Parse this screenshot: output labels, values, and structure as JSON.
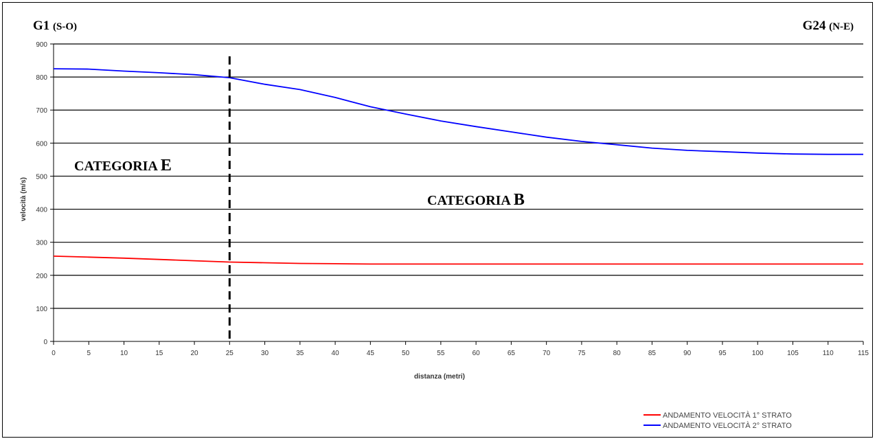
{
  "chart_data": {
    "type": "line",
    "xlabel": "distanza (metri)",
    "ylabel": "velocità (m/s)",
    "xlim": [
      0,
      115
    ],
    "ylim": [
      0,
      900
    ],
    "x_ticks": [
      "0",
      "5",
      "10",
      "15",
      "20",
      "25",
      "30",
      "35",
      "40",
      "45",
      "50",
      "55",
      "60",
      "65",
      "70",
      "75",
      "80",
      "85",
      "90",
      "95",
      "100",
      "105",
      "110",
      "115"
    ],
    "y_ticks": [
      "0",
      "100",
      "200",
      "300",
      "400",
      "500",
      "600",
      "700",
      "800",
      "900"
    ],
    "grid": true,
    "legend_position": "bottom-right",
    "series": [
      {
        "name": "ANDAMENTO VELOCITÀ 1° STRATO",
        "color": "#ff0000",
        "x": [
          0,
          5,
          10,
          15,
          20,
          25,
          30,
          35,
          40,
          45,
          50,
          55,
          60,
          65,
          70,
          75,
          80,
          85,
          90,
          95,
          100,
          105,
          110,
          115
        ],
        "y": [
          258,
          255,
          252,
          248,
          244,
          240,
          238,
          236,
          235,
          234,
          234,
          234,
          234,
          234,
          234,
          234,
          234,
          234,
          234,
          234,
          234,
          234,
          234,
          234
        ]
      },
      {
        "name": "ANDAMENTO VELOCITÀ 2° STRATO",
        "color": "#0000ff",
        "x": [
          0,
          5,
          10,
          15,
          20,
          25,
          30,
          35,
          40,
          45,
          50,
          55,
          60,
          65,
          70,
          75,
          80,
          85,
          90,
          95,
          100,
          105,
          110,
          115
        ],
        "y": [
          825,
          824,
          818,
          813,
          807,
          798,
          778,
          762,
          738,
          710,
          688,
          667,
          650,
          634,
          618,
          605,
          595,
          585,
          578,
          574,
          570,
          567,
          566,
          566
        ]
      }
    ],
    "divider_x": 25,
    "annotations": {
      "left_endpoint": {
        "main": "G1",
        "detail": "(S-O)"
      },
      "right_endpoint": {
        "main": "G24",
        "detail": "(N-E)"
      },
      "left_region": {
        "word": "CATEGORIA",
        "letter": "E"
      },
      "right_region": {
        "word": "CATEGORIA",
        "letter": "B"
      }
    }
  }
}
